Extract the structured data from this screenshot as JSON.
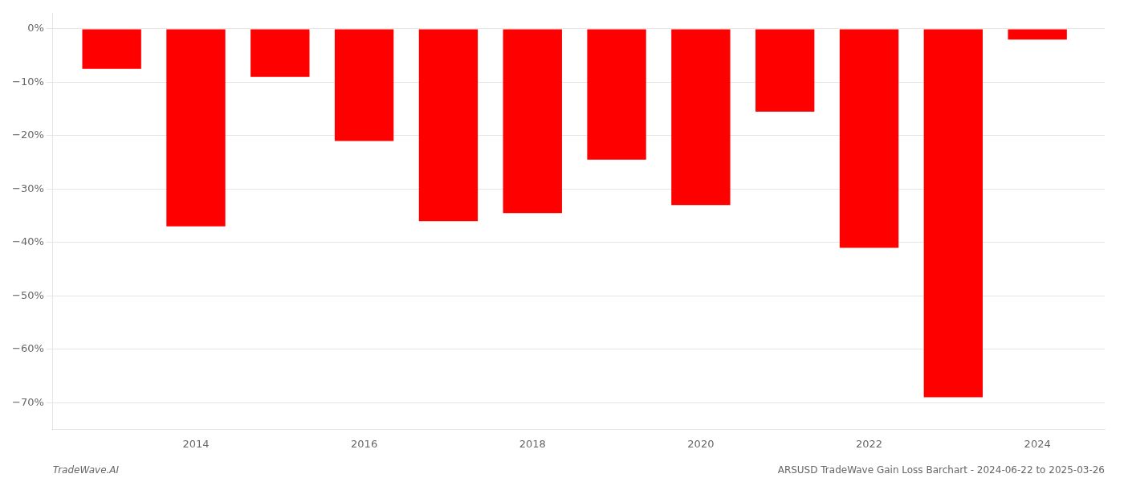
{
  "chart_data": {
    "type": "bar",
    "x": [
      2013,
      2014,
      2015,
      2016,
      2017,
      2018,
      2019,
      2020,
      2021,
      2022,
      2023,
      2024
    ],
    "values": [
      -7.5,
      -37.0,
      -9.0,
      -21.0,
      -36.0,
      -34.5,
      -24.5,
      -33.0,
      -15.5,
      -41.0,
      -69.0,
      -2.0
    ],
    "color": "#ff0000",
    "xlim": [
      2012.3,
      2024.8
    ],
    "xticks": [
      2014,
      2016,
      2018,
      2020,
      2022,
      2024
    ],
    "ylim": [
      -75,
      3
    ],
    "yticks": [
      {
        "value": 0,
        "label": "0%"
      },
      {
        "value": -10,
        "label": "−10%"
      },
      {
        "value": -20,
        "label": "−20%"
      },
      {
        "value": -30,
        "label": "−30%"
      },
      {
        "value": -40,
        "label": "−40%"
      },
      {
        "value": -50,
        "label": "−50%"
      },
      {
        "value": -60,
        "label": "−60%"
      },
      {
        "value": -70,
        "label": "−70%"
      }
    ],
    "grid": true,
    "annotations": [
      "TradeWave.AI",
      "ARSUSD TradeWave Gain Loss Barchart - 2024-06-22 to 2025-03-26"
    ]
  }
}
